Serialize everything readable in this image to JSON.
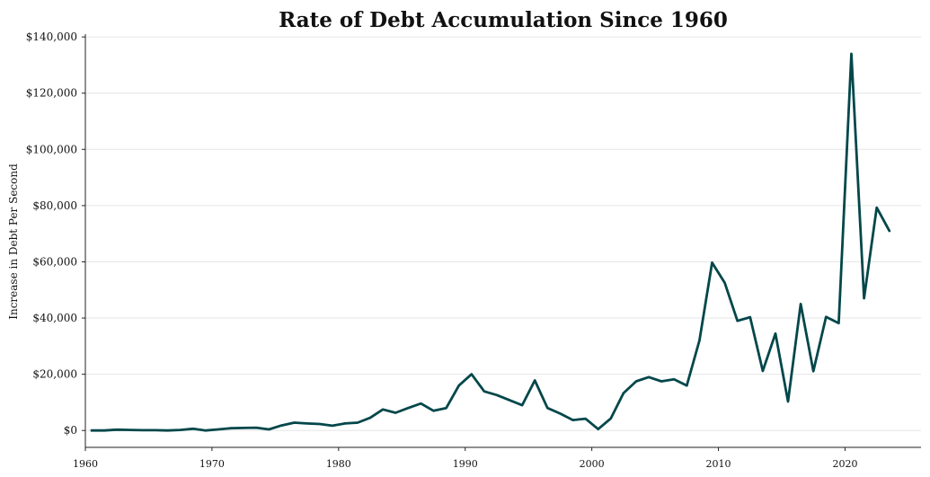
{
  "chart_data": {
    "type": "line",
    "title": "Rate of Debt Accumulation Since 1960",
    "xlabel": "",
    "ylabel": "Increase in Debt Per Second",
    "xlim": [
      1960,
      2026
    ],
    "ylim": [
      -6000,
      141000
    ],
    "x_ticks": [
      1960,
      1970,
      1980,
      1990,
      2000,
      2010,
      2020
    ],
    "x_tick_labels": [
      "1960",
      "1970",
      "1980",
      "1990",
      "2000",
      "2010",
      "2020"
    ],
    "y_ticks": [
      0,
      20000,
      40000,
      60000,
      80000,
      100000,
      120000,
      140000
    ],
    "y_tick_labels": [
      "$0",
      "$20,000",
      "$40,000",
      "$60,000",
      "$80,000",
      "$100,000",
      "$120,000",
      "$140,000"
    ],
    "grid": "horizontal",
    "colors": {
      "line": "#03474a"
    },
    "series": [
      {
        "x": [
          1960.5,
          1961.5,
          1962.5,
          1963.5,
          1964.5,
          1965.5,
          1966.5,
          1967.5,
          1968.5,
          1969.5,
          1970.5,
          1971.5,
          1972.5,
          1973.5,
          1974.5,
          1975.5,
          1976.5,
          1977.5,
          1978.5,
          1979.5,
          1980.5,
          1981.5,
          1982.5,
          1983.5,
          1984.5,
          1985.5,
          1986.5,
          1987.5,
          1988.5,
          1989.5,
          1990.5,
          1991.5,
          1992.5,
          1993.5,
          1994.5,
          1995.5,
          1996.5,
          1997.5,
          1998.5,
          1999.5,
          2000.5,
          2001.5,
          2002.5,
          2003.5,
          2004.5,
          2005.5,
          2006.5,
          2007.5,
          2008.5,
          2009.5,
          2010.5,
          2011.5,
          2012.5,
          2013.5,
          2014.5,
          2015.5,
          2016.5,
          2017.5,
          2018.5,
          2019.5,
          2020.5,
          2021.5,
          2022.5,
          2023.5
        ],
        "values": [
          0,
          0,
          300,
          200,
          100,
          100,
          0,
          200,
          600,
          0,
          400,
          800,
          900,
          1000,
          400,
          1800,
          2800,
          2500,
          2300,
          1700,
          2500,
          2800,
          4500,
          7500,
          6300,
          8000,
          9600,
          7000,
          8000,
          16000,
          20000,
          13900,
          12600,
          10800,
          9000,
          17800,
          8000,
          6000,
          3700,
          4200,
          500,
          4300,
          13300,
          17500,
          19000,
          17500,
          18200,
          16000,
          32000,
          59700,
          52500,
          39000,
          40300,
          21200,
          34500,
          10300,
          45000,
          21100,
          40400,
          38200,
          134000,
          47000,
          79300,
          71000
        ]
      }
    ]
  }
}
